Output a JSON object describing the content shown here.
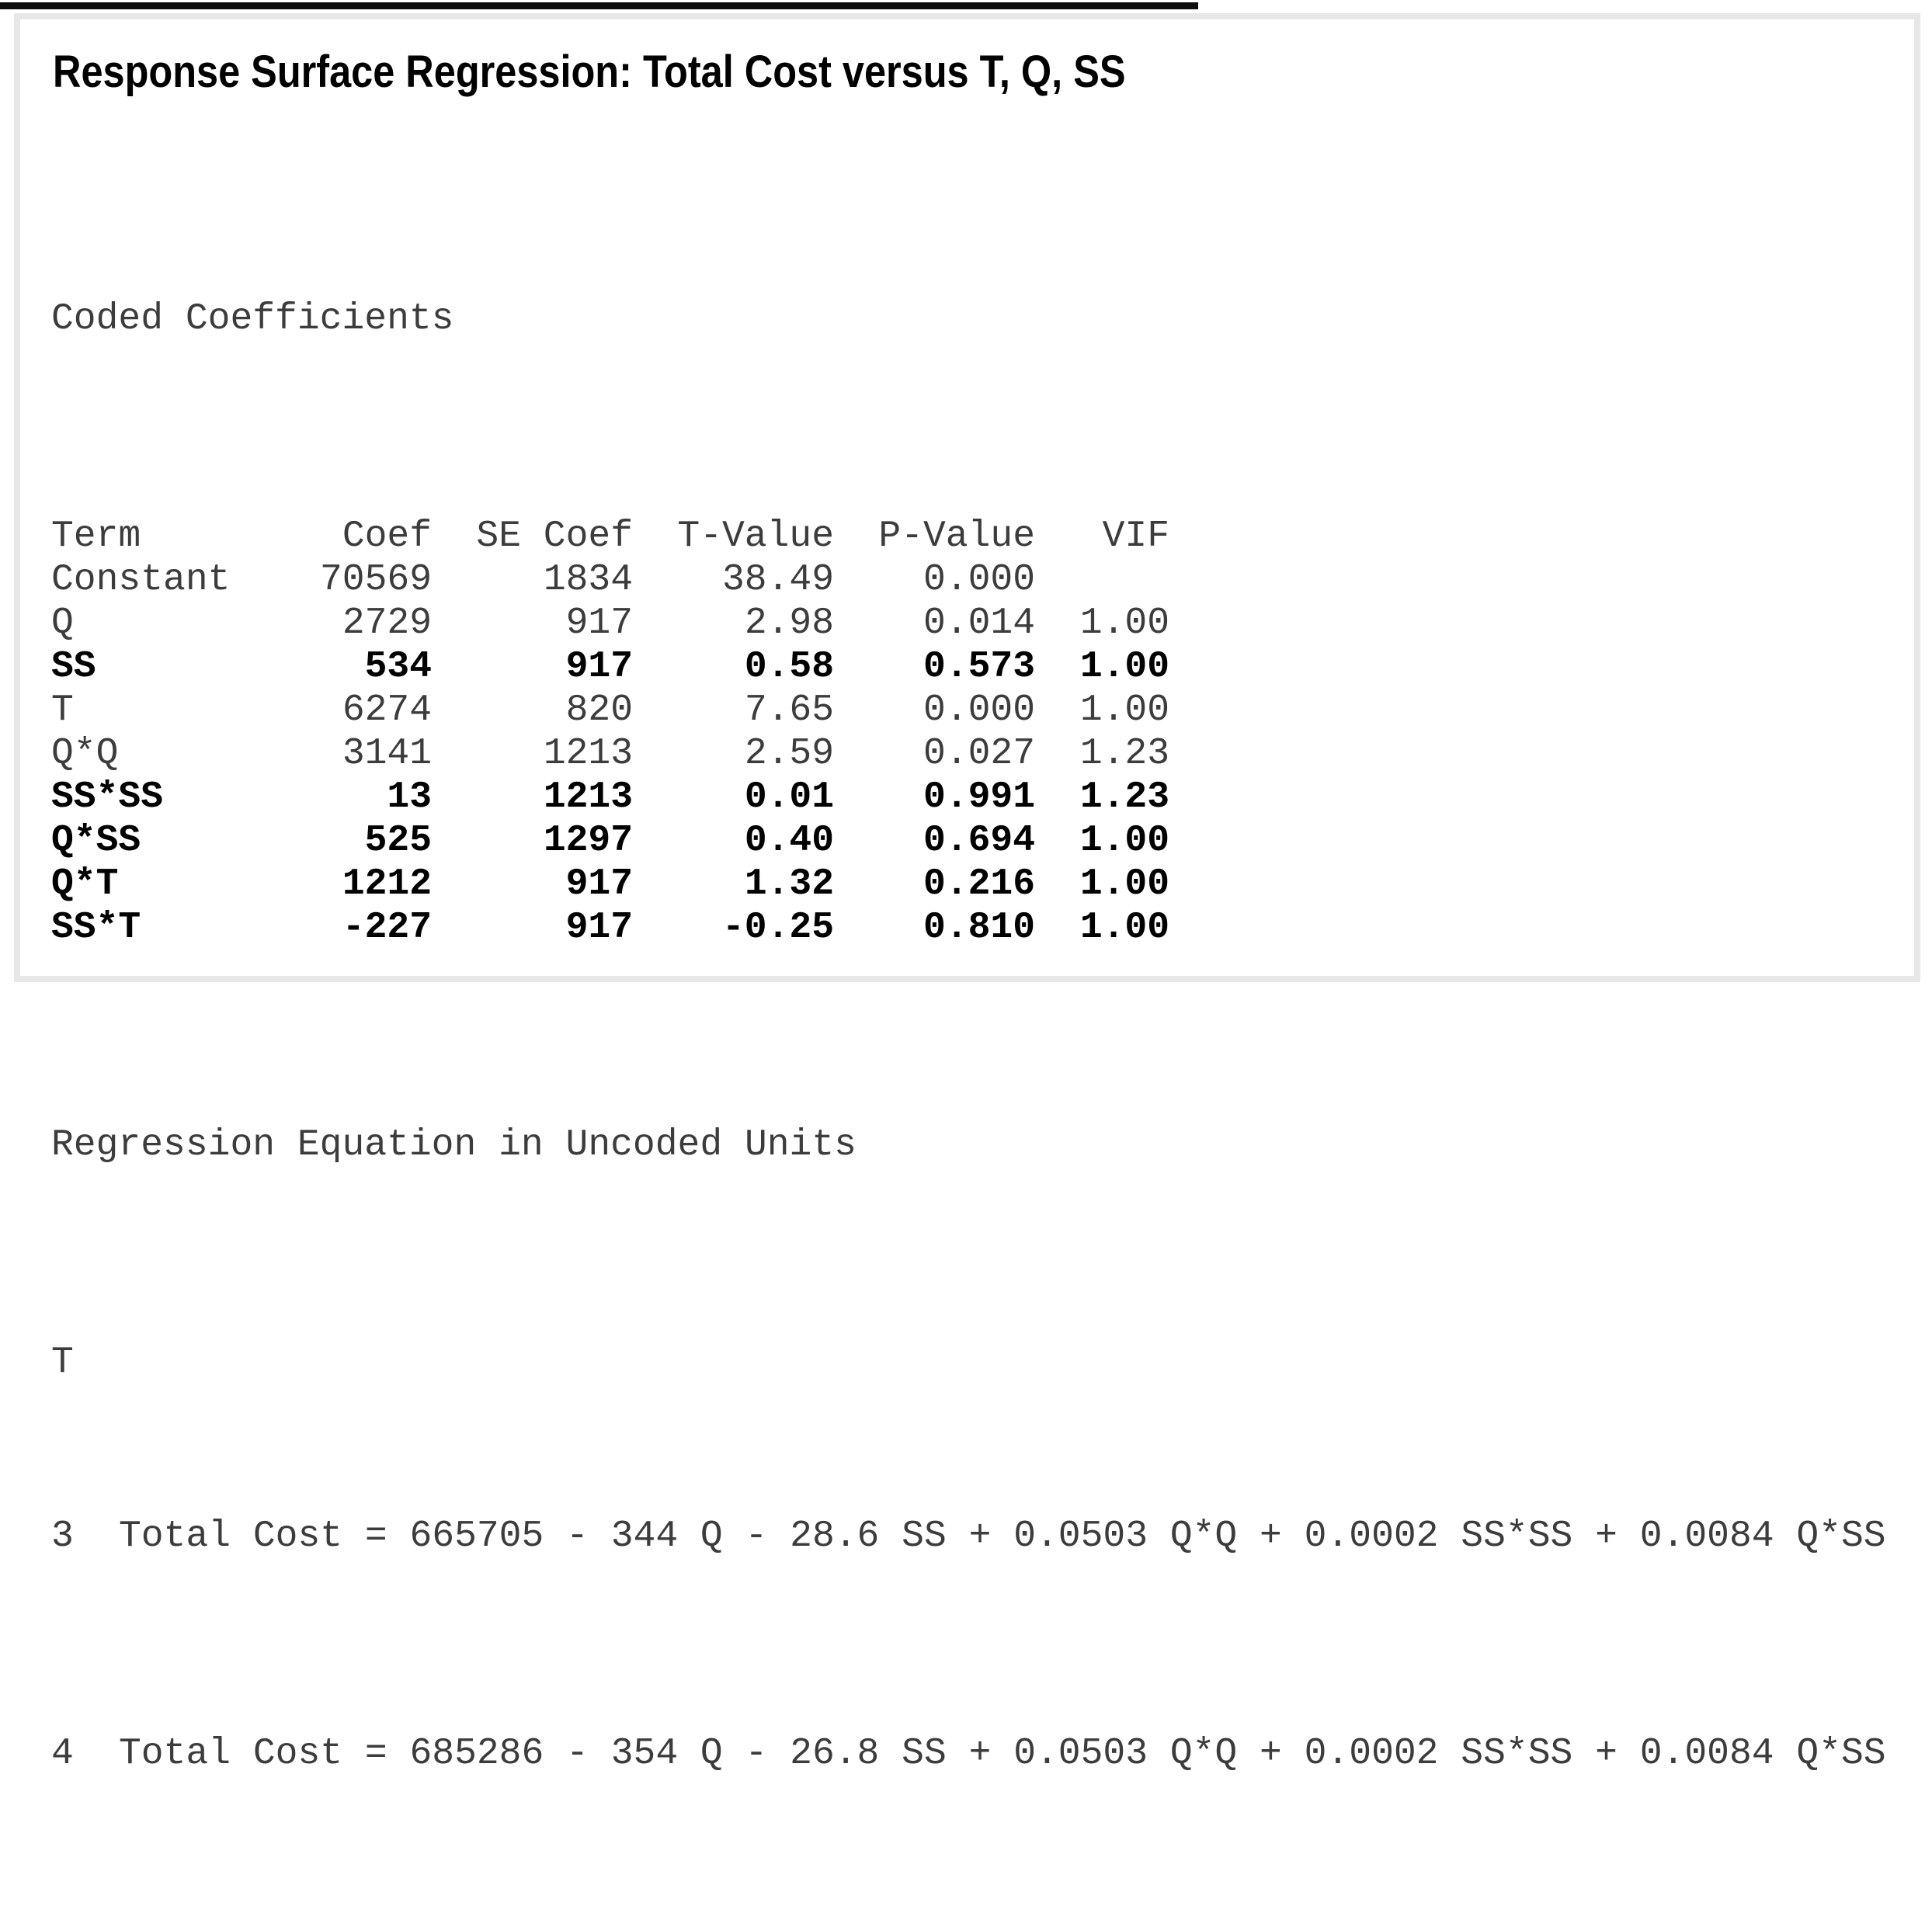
{
  "title": "Response Surface Regression: Total Cost versus T, Q, SS",
  "coded_coefficients": {
    "heading": "Coded Coefficients",
    "columns": [
      "Term",
      "Coef",
      "SE Coef",
      "T-Value",
      "P-Value",
      "VIF"
    ],
    "rows": [
      {
        "term": "Constant",
        "coef": "70569",
        "se_coef": "1834",
        "t_value": "38.49",
        "p_value": "0.000",
        "vif": "",
        "bold": false
      },
      {
        "term": "Q",
        "coef": "2729",
        "se_coef": "917",
        "t_value": "2.98",
        "p_value": "0.014",
        "vif": "1.00",
        "bold": false
      },
      {
        "term": "SS",
        "coef": "534",
        "se_coef": "917",
        "t_value": "0.58",
        "p_value": "0.573",
        "vif": "1.00",
        "bold": true
      },
      {
        "term": "T",
        "coef": "6274",
        "se_coef": "820",
        "t_value": "7.65",
        "p_value": "0.000",
        "vif": "1.00",
        "bold": false
      },
      {
        "term": "Q*Q",
        "coef": "3141",
        "se_coef": "1213",
        "t_value": "2.59",
        "p_value": "0.027",
        "vif": "1.23",
        "bold": false
      },
      {
        "term": "SS*SS",
        "coef": "13",
        "se_coef": "1213",
        "t_value": "0.01",
        "p_value": "0.991",
        "vif": "1.23",
        "bold": true
      },
      {
        "term": "Q*SS",
        "coef": "525",
        "se_coef": "1297",
        "t_value": "0.40",
        "p_value": "0.694",
        "vif": "1.00",
        "bold": true
      },
      {
        "term": "Q*T",
        "coef": "1212",
        "se_coef": "917",
        "t_value": "1.32",
        "p_value": "0.216",
        "vif": "1.00",
        "bold": true
      },
      {
        "term": "SS*T",
        "coef": "-227",
        "se_coef": "917",
        "t_value": "-0.25",
        "p_value": "0.810",
        "vif": "1.00",
        "bold": true
      }
    ]
  },
  "regression_equation": {
    "heading": "Regression Equation in Uncoded Units",
    "variable_label": "T",
    "rows": [
      {
        "level": "3",
        "equation": "Total Cost = 665705 - 344 Q - 28.6 SS + 0.0503 Q*Q + 0.0002 SS*SS + 0.0084 Q*SS"
      },
      {
        "level": "4",
        "equation": "Total Cost = 685286 - 354 Q - 26.8 SS + 0.0503 Q*Q + 0.0002 SS*SS + 0.0084 Q*SS"
      }
    ]
  }
}
